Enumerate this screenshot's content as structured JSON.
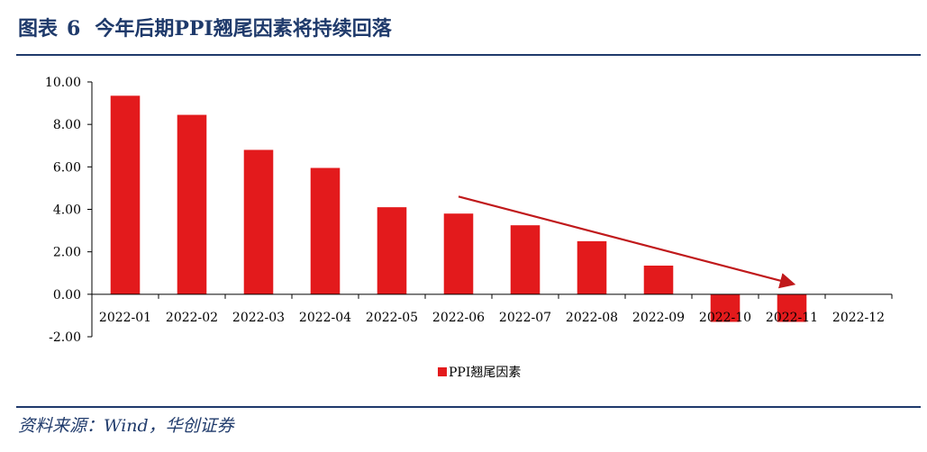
{
  "figure": {
    "label": "图表",
    "number": "6",
    "title": "今年后期PPI翘尾因素将持续回落"
  },
  "source": "资料来源：Wind，华创证券",
  "colors": {
    "bar": "#e31a1c",
    "arrow": "#c0191b",
    "axis": "#000000",
    "title": "#1f3a6b"
  },
  "chart_data": {
    "type": "bar",
    "categories": [
      "2022-01",
      "2022-02",
      "2022-03",
      "2022-04",
      "2022-05",
      "2022-06",
      "2022-07",
      "2022-08",
      "2022-09",
      "2022-10",
      "2022-11",
      "2022-12"
    ],
    "series": [
      {
        "name": "PPI翘尾因素",
        "values": [
          9.35,
          8.45,
          6.8,
          5.95,
          4.1,
          3.8,
          3.25,
          2.5,
          1.35,
          -1.3,
          -1.3,
          null
        ]
      }
    ],
    "ylim": [
      -2,
      10
    ],
    "yticks": [
      -2,
      0,
      2,
      4,
      6,
      8,
      10
    ],
    "ytick_labels": [
      "-2.00",
      "0.00",
      "2.00",
      "4.00",
      "6.00",
      "8.00",
      "10.00"
    ],
    "grid": false,
    "legend_position": "bottom-center",
    "annotation": {
      "type": "arrow",
      "description": "downward trend arrow",
      "from": {
        "category": "2022-06",
        "y": 4.6
      },
      "to": {
        "category": "2022-11",
        "y": 0.5
      }
    }
  }
}
